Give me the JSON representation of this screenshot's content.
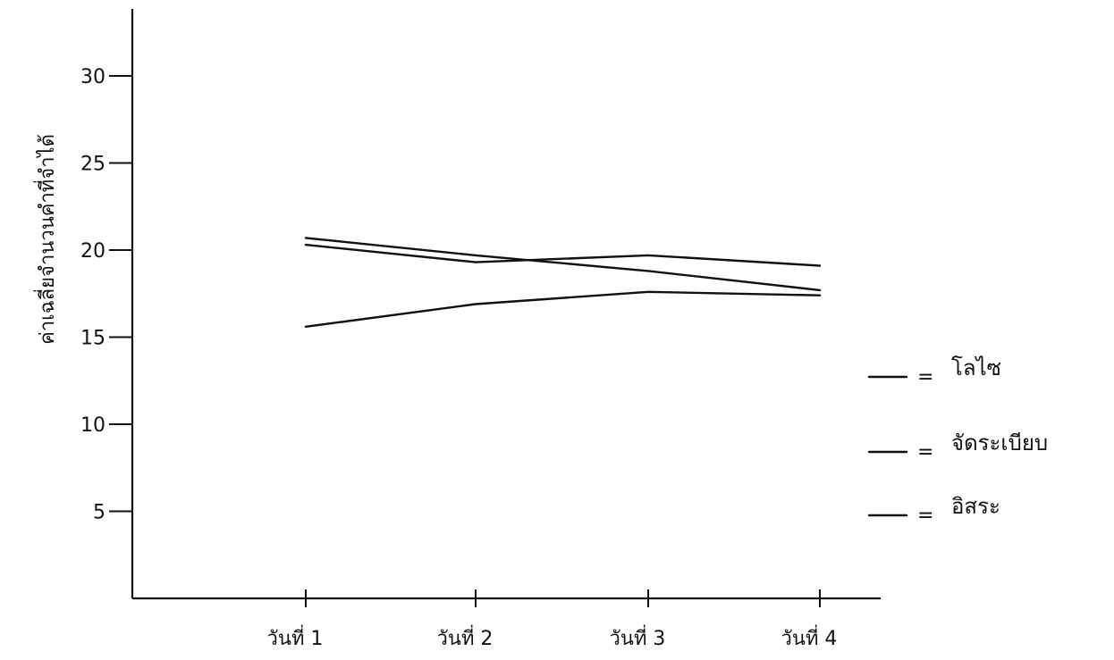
{
  "chart_data": {
    "type": "line",
    "title": "",
    "xlabel": "",
    "ylabel": "ค่าเฉลี่ยจำนวนคำที่จำได้",
    "categories": [
      "วันที่ 1",
      "วันที่ 2",
      "วันที่ 3",
      "วันที่ 4"
    ],
    "yticks": [
      5,
      10,
      15,
      20,
      25,
      30
    ],
    "ytick_labels": [
      "5",
      "10",
      "15",
      "20",
      "25",
      "30"
    ],
    "ylim": [
      0,
      33
    ],
    "grid": false,
    "legend_position": "right",
    "legend_separator": "=",
    "series": [
      {
        "name": "โลไซ",
        "values": [
          20.7,
          19.7,
          18.8,
          17.7
        ]
      },
      {
        "name": "จัดระเบียบ",
        "values": [
          20.3,
          19.3,
          19.7,
          19.1
        ]
      },
      {
        "name": "อิสระ",
        "values": [
          15.6,
          16.9,
          17.6,
          17.4
        ]
      }
    ],
    "colors": {
      "ink": "#111111",
      "background": "#ffffff"
    }
  }
}
